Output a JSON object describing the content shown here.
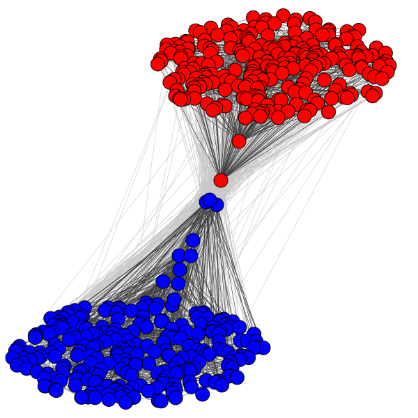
{
  "colors": {
    "background": "#ffffff",
    "cluster_a": "#ff0000",
    "cluster_b": "#0000ff",
    "node_stroke": "#000000",
    "edge_between": "#c8c8c8",
    "edge_within": "#404040"
  },
  "clusters": [
    {
      "id": "cluster-a",
      "color_key": "cluster_a",
      "node_count": 240
    },
    {
      "id": "cluster-b",
      "color_key": "cluster_b",
      "node_count": 240
    }
  ],
  "bridge_nodes": [
    {
      "cluster": "cluster-a",
      "count": 2
    },
    {
      "cluster": "cluster-b",
      "count": 10
    }
  ]
}
